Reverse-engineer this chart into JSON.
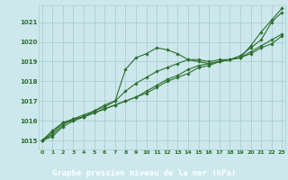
{
  "xlabel": "Graphe pression niveau de la mer (hPa)",
  "background_color": "#cce8ec",
  "label_bg_color": "#2d6e2d",
  "label_text_color": "#ffffff",
  "grid_color": "#aacdd4",
  "line_color": "#2d6e2d",
  "x_ticks": [
    0,
    1,
    2,
    3,
    4,
    5,
    6,
    7,
    8,
    9,
    10,
    11,
    12,
    13,
    14,
    15,
    16,
    17,
    18,
    19,
    20,
    21,
    22,
    23
  ],
  "y_ticks": [
    1015,
    1016,
    1017,
    1018,
    1019,
    1020,
    1021
  ],
  "ylim": [
    1014.55,
    1021.85
  ],
  "xlim": [
    -0.3,
    23.3
  ],
  "series": [
    [
      1015.0,
      1015.5,
      1015.9,
      1016.0,
      1016.2,
      1016.5,
      1016.8,
      1017.0,
      1018.6,
      1019.2,
      1019.4,
      1019.7,
      1019.6,
      1019.4,
      1019.1,
      1019.0,
      1018.9,
      1019.0,
      1019.1,
      1019.2,
      1019.8,
      1020.5,
      1021.1,
      1021.7
    ],
    [
      1015.0,
      1015.4,
      1015.9,
      1016.1,
      1016.3,
      1016.5,
      1016.7,
      1017.0,
      1017.5,
      1017.9,
      1018.2,
      1018.5,
      1018.7,
      1018.9,
      1019.1,
      1019.1,
      1019.0,
      1019.1,
      1019.1,
      1019.3,
      1019.7,
      1020.1,
      1021.0,
      1021.5
    ],
    [
      1015.0,
      1015.3,
      1015.8,
      1016.1,
      1016.2,
      1016.4,
      1016.6,
      1016.8,
      1017.0,
      1017.2,
      1017.5,
      1017.8,
      1018.1,
      1018.3,
      1018.6,
      1018.8,
      1018.9,
      1019.0,
      1019.1,
      1019.2,
      1019.5,
      1019.8,
      1020.1,
      1020.4
    ],
    [
      1015.0,
      1015.2,
      1015.7,
      1016.0,
      1016.2,
      1016.4,
      1016.6,
      1016.8,
      1017.0,
      1017.2,
      1017.4,
      1017.7,
      1018.0,
      1018.2,
      1018.4,
      1018.7,
      1018.8,
      1019.0,
      1019.1,
      1019.2,
      1019.4,
      1019.7,
      1019.9,
      1020.3
    ]
  ]
}
